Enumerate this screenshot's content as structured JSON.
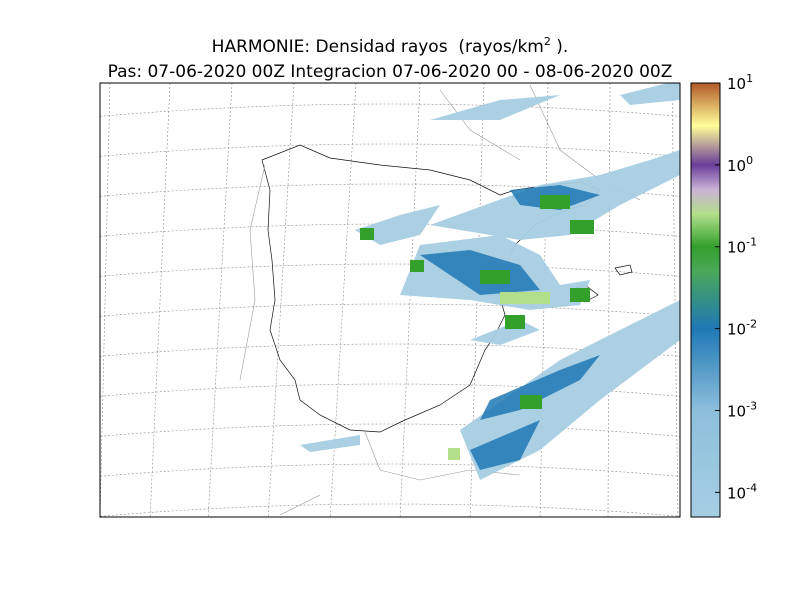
{
  "title": {
    "line1_text": "HARMONIE: Densidad rayos  (rayos/km",
    "line1_sup": "2",
    "line1_end": " ).",
    "line2": "Pas: 07-06-2020 00Z Integracion 07-06-2020 00 - 08-06-2020 00Z"
  },
  "colorbar": {
    "scale": "log",
    "lim": [
      5e-05,
      10
    ],
    "ticks": [
      {
        "value": 10,
        "base": "10",
        "exponent": "1"
      },
      {
        "value": 1,
        "base": "10",
        "exponent": "0"
      },
      {
        "value": 0.1,
        "base": "10",
        "exponent": "-1"
      },
      {
        "value": 0.01,
        "base": "10",
        "exponent": "-2"
      },
      {
        "value": 0.001,
        "base": "10",
        "exponent": "-3"
      },
      {
        "value": 0.0001,
        "base": "10",
        "exponent": "-4"
      }
    ],
    "stops": [
      {
        "value": 5e-05,
        "color": "#a6cee3"
      },
      {
        "value": 0.001,
        "color": "#8dbfdc"
      },
      {
        "value": 0.01,
        "color": "#1f78b4"
      },
      {
        "value": 0.05,
        "color": "#4aa85a"
      },
      {
        "value": 0.1,
        "color": "#33a02c"
      },
      {
        "value": 0.25,
        "color": "#b2df8a"
      },
      {
        "value": 0.5,
        "color": "#cab2d6"
      },
      {
        "value": 1,
        "color": "#6a3d9a"
      },
      {
        "value": 3,
        "color": "#ffff99"
      },
      {
        "value": 10,
        "color": "#b15928"
      }
    ]
  }
}
